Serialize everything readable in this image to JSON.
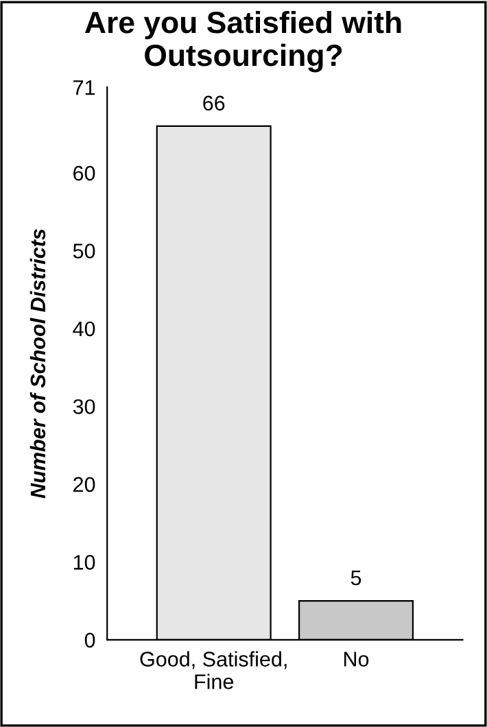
{
  "chart_data": {
    "type": "bar",
    "title": "Are you Satisfied with Outsourcing?",
    "ylabel": "Number of School Districts",
    "categories": [
      "Good, Satisfied,\nFine",
      "No"
    ],
    "values": [
      66,
      5
    ],
    "colors": [
      "#e6e6e6",
      "#c8c8c8"
    ],
    "ylim": [
      0,
      71
    ],
    "yticks": [
      0,
      10,
      20,
      30,
      40,
      50,
      60,
      71
    ],
    "data_labels": true,
    "grid": false,
    "legend": false
  }
}
